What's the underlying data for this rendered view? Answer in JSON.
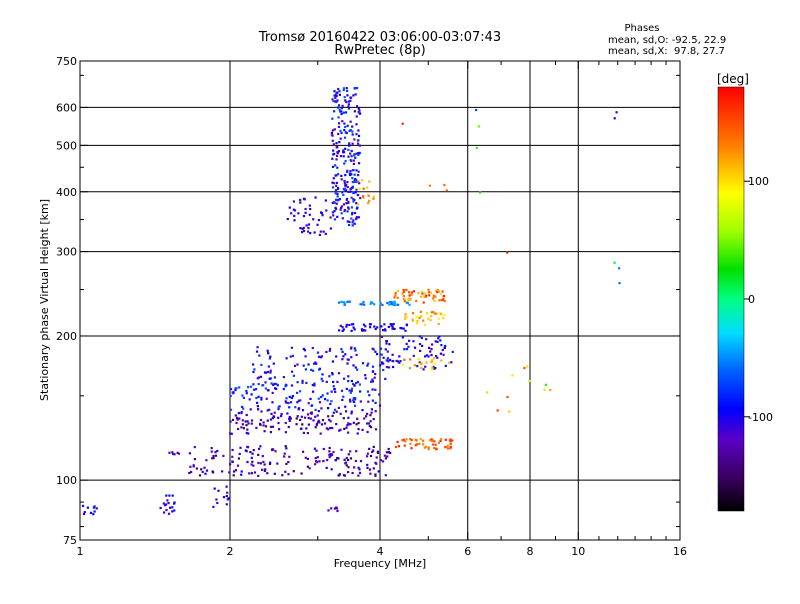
{
  "chart_data": {
    "type": "scatter",
    "title": "Tromsø 20160422 03:06:00-03:07:43",
    "subtitle": "RwPretec (8p)",
    "xlabel": "Frequency [MHz]",
    "ylabel": "Stationary phase Virtual Height [km]",
    "x_scale": "log2",
    "y_scale": "log",
    "xlim": [
      1,
      16
    ],
    "ylim": [
      75,
      750
    ],
    "x_ticks": [
      1,
      2,
      4,
      6,
      8,
      10,
      16
    ],
    "x_tick_labels": [
      "1",
      "2",
      "4",
      "6",
      "8",
      "10",
      "16"
    ],
    "x_minor_ticks": [
      3,
      5,
      7,
      9,
      11,
      12,
      13,
      14,
      15
    ],
    "y_ticks": [
      75,
      100,
      200,
      300,
      400,
      500,
      600,
      750
    ],
    "y_tick_labels": [
      "75",
      "100",
      "200",
      "300",
      "400",
      "500",
      "600",
      "750"
    ],
    "grid": true,
    "grid_x": [
      2,
      4,
      6,
      8,
      10
    ],
    "grid_y": [
      100,
      200,
      300,
      400,
      500,
      600
    ],
    "phases_box": {
      "title": "Phases",
      "line1": "mean, sd,O: -92.5, 22.9",
      "line2": "mean, sd,X:  97.8, 27.7"
    },
    "colorbar": {
      "label": "[deg]",
      "range": [
        -180,
        180
      ],
      "ticks": [
        100,
        0,
        -100
      ],
      "tick_labels": [
        "100",
        "0",
        "-100"
      ]
    },
    "clusters": [
      {
        "f": [
          1.0,
          1.08
        ],
        "h": [
          84,
          89
        ],
        "p": [
          -80,
          -110
        ],
        "n": 10
      },
      {
        "f": [
          1.45,
          1.55
        ],
        "h": [
          84,
          97
        ],
        "p": [
          -90,
          -120
        ],
        "n": 18
      },
      {
        "f": [
          1.85,
          2.0
        ],
        "h": [
          84,
          97
        ],
        "p": [
          -90,
          -120
        ],
        "n": 12
      },
      {
        "f": [
          3.15,
          3.35
        ],
        "h": [
          86,
          88
        ],
        "p": [
          -100,
          -130
        ],
        "n": 6
      },
      {
        "f": [
          1.5,
          1.6
        ],
        "h": [
          113,
          115
        ],
        "p": [
          -110,
          -130
        ],
        "n": 6
      },
      {
        "f": [
          1.65,
          4.2
        ],
        "h": [
          102,
          118
        ],
        "p": [
          -95,
          -150
        ],
        "n": 180
      },
      {
        "f": [
          2.0,
          4.0
        ],
        "h": [
          125,
          140
        ],
        "p": [
          -100,
          -150
        ],
        "n": 140
      },
      {
        "f": [
          2.0,
          4.0
        ],
        "h": [
          140,
          160
        ],
        "p": [
          -60,
          -120
        ],
        "n": 140
      },
      {
        "f": [
          2.2,
          4.2
        ],
        "h": [
          160,
          190
        ],
        "p": [
          -70,
          -130
        ],
        "n": 120
      },
      {
        "f": [
          4.0,
          5.6
        ],
        "h": [
          170,
          200
        ],
        "p": [
          -80,
          -130
        ],
        "n": 70
      },
      {
        "f": [
          3.3,
          4.6
        ],
        "h": [
          205,
          212
        ],
        "p": [
          -90,
          -110
        ],
        "n": 45
      },
      {
        "f": [
          3.3,
          4.6
        ],
        "h": [
          232,
          236
        ],
        "p": [
          -40,
          -60
        ],
        "n": 35
      },
      {
        "f": [
          4.2,
          5.4
        ],
        "h": [
          235,
          250
        ],
        "p": [
          100,
          170
        ],
        "n": 60
      },
      {
        "f": [
          4.4,
          5.4
        ],
        "h": [
          210,
          225
        ],
        "p": [
          90,
          140
        ],
        "n": 30
      },
      {
        "f": [
          4.3,
          5.6
        ],
        "h": [
          116,
          122
        ],
        "p": [
          120,
          170
        ],
        "n": 50
      },
      {
        "f": [
          4.3,
          5.6
        ],
        "h": [
          170,
          180
        ],
        "p": [
          80,
          140
        ],
        "n": 20
      },
      {
        "f": [
          2.6,
          3.2
        ],
        "h": [
          325,
          390
        ],
        "p": [
          -90,
          -130
        ],
        "n": 45
      },
      {
        "f": [
          3.2,
          3.65
        ],
        "h": [
          340,
          660
        ],
        "p": [
          -60,
          -130
        ],
        "n": 260
      },
      {
        "f": [
          3.6,
          3.9
        ],
        "h": [
          370,
          430
        ],
        "p": [
          100,
          150
        ],
        "n": 15
      },
      {
        "f": [
          6.1,
          8.5
        ],
        "h": [
          125,
          200
        ],
        "p": [
          60,
          170
        ],
        "n": 8
      },
      {
        "f": [
          11.8,
          12.2
        ],
        "h": [
          250,
          290
        ],
        "p": [
          -100,
          120
        ],
        "n": 3
      },
      {
        "f": [
          8.5,
          8.8
        ],
        "h": [
          150,
          185
        ],
        "p": [
          20,
          140
        ],
        "n": 3
      },
      {
        "f": [
          5.0,
          5.5
        ],
        "h": [
          400,
          430
        ],
        "p": [
          130,
          160
        ],
        "n": 3
      },
      {
        "f": [
          6.2,
          6.5
        ],
        "h": [
          380,
          600
        ],
        "p": [
          -100,
          160
        ],
        "n": 4
      },
      {
        "f": [
          11.8,
          12.0
        ],
        "h": [
          560,
          605
        ],
        "p": [
          -100,
          -110
        ],
        "n": 2
      },
      {
        "f": [
          7.1,
          7.3
        ],
        "h": [
          290,
          300
        ],
        "p": [
          170,
          175
        ],
        "n": 1
      },
      {
        "f": [
          4.3,
          4.5
        ],
        "h": [
          550,
          560
        ],
        "p": [
          160,
          170
        ],
        "n": 1
      }
    ]
  }
}
